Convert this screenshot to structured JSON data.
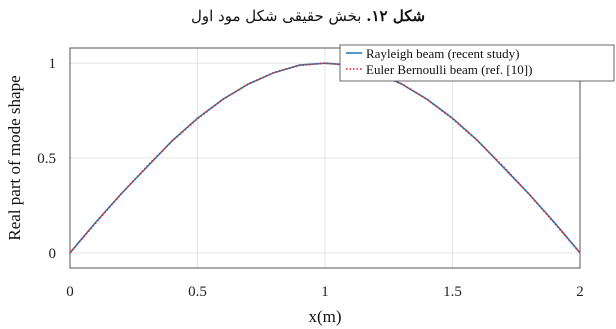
{
  "caption": {
    "label": "شکل ۱۲.",
    "text": " بخش حقیقی شکل مود اول"
  },
  "chart_data": {
    "type": "line",
    "title": "",
    "xlabel": "x(m)",
    "ylabel": "Real part of mode shape",
    "xlim": [
      0,
      2
    ],
    "ylim": [
      -0.08,
      1.08
    ],
    "xticks": [
      0,
      0.5,
      1,
      1.5,
      2
    ],
    "xtick_labels": [
      "0",
      "0.5",
      "1",
      "1.5",
      "2"
    ],
    "yticks": [
      0,
      0.5,
      1
    ],
    "ytick_labels": [
      "0",
      "0.5",
      "1"
    ],
    "grid": true,
    "legend_position": "top-right",
    "series": [
      {
        "name": "Rayleigh beam (recent study)",
        "color": "#2c7fb8",
        "style": "solid",
        "x": [
          0,
          0.1,
          0.2,
          0.3,
          0.4,
          0.5,
          0.6,
          0.7,
          0.8,
          0.9,
          1.0,
          1.1,
          1.2,
          1.3,
          1.4,
          1.5,
          1.6,
          1.7,
          1.8,
          1.9,
          2.0
        ],
        "y": [
          0.0,
          0.16,
          0.31,
          0.45,
          0.59,
          0.71,
          0.81,
          0.89,
          0.95,
          0.99,
          1.0,
          0.99,
          0.95,
          0.89,
          0.81,
          0.71,
          0.59,
          0.45,
          0.31,
          0.16,
          0.0
        ]
      },
      {
        "name": "Euler Bernoulli beam (ref. [10])",
        "color": "#d62728",
        "style": "dotted",
        "x": [
          0,
          0.1,
          0.2,
          0.3,
          0.4,
          0.5,
          0.6,
          0.7,
          0.8,
          0.9,
          1.0,
          1.1,
          1.2,
          1.3,
          1.4,
          1.5,
          1.6,
          1.7,
          1.8,
          1.9,
          2.0
        ],
        "y": [
          0.0,
          0.156,
          0.309,
          0.454,
          0.588,
          0.707,
          0.809,
          0.891,
          0.951,
          0.988,
          1.0,
          0.988,
          0.951,
          0.891,
          0.809,
          0.707,
          0.588,
          0.454,
          0.309,
          0.156,
          0.0
        ]
      }
    ]
  }
}
